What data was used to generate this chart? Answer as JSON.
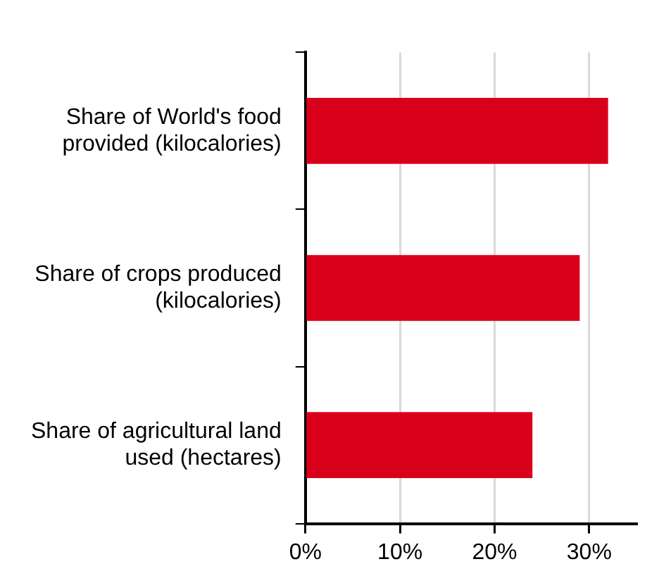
{
  "chart_data": {
    "type": "bar",
    "orientation": "horizontal",
    "categories": [
      "Share of World's food provided (kilocalories)",
      "Share of crops produced (kilocalories)",
      "Share of agricultural land used (hectares)"
    ],
    "values": [
      32,
      29,
      24
    ],
    "color": "#d9001b",
    "xlim": [
      0,
      35
    ],
    "xticks": [
      {
        "value": 0,
        "label": "0%"
      },
      {
        "value": 10,
        "label": "10%"
      },
      {
        "value": 20,
        "label": "20%"
      },
      {
        "value": 30,
        "label": "30%"
      }
    ],
    "grid": "x",
    "legend": false
  }
}
